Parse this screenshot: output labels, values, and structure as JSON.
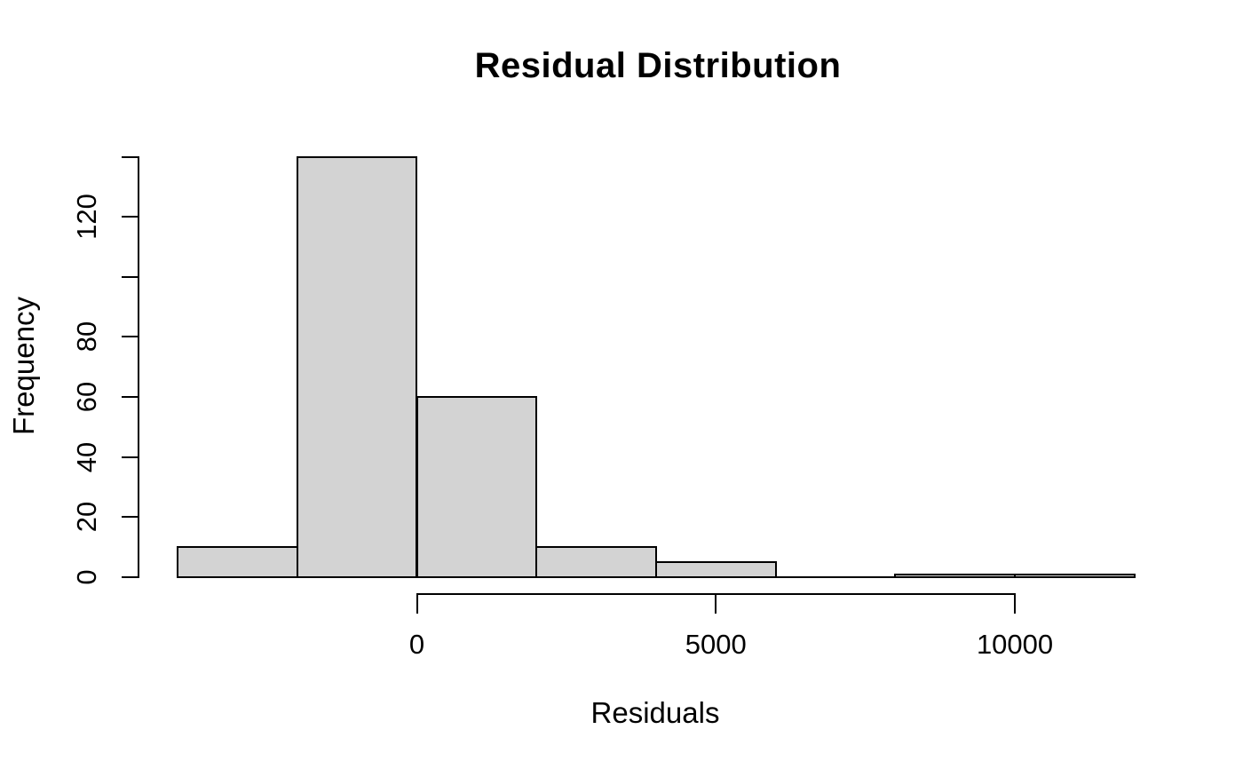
{
  "chart_data": {
    "type": "bar",
    "subtype": "histogram",
    "title": "Residual Distribution",
    "xlabel": "Residuals",
    "ylabel": "Frequency",
    "breaks": [
      -4000,
      -2000,
      0,
      2000,
      4000,
      6000,
      8000,
      10000,
      12000
    ],
    "counts": [
      10,
      140,
      60,
      10,
      5,
      0,
      1,
      1
    ],
    "xlim": [
      -4000,
      12000
    ],
    "ylim": [
      0,
      140
    ],
    "x_ticks": [
      {
        "value": 0,
        "label": "0"
      },
      {
        "value": 5000,
        "label": "5000"
      },
      {
        "value": 10000,
        "label": "10000"
      }
    ],
    "y_ticks": [
      {
        "value": 0,
        "label": "0"
      },
      {
        "value": 20,
        "label": "20"
      },
      {
        "value": 40,
        "label": "40"
      },
      {
        "value": 60,
        "label": "60"
      },
      {
        "value": 80,
        "label": "80"
      },
      {
        "value": 100,
        "label": ""
      },
      {
        "value": 120,
        "label": "120"
      },
      {
        "value": 140,
        "label": ""
      }
    ],
    "grid": false,
    "legend": "none",
    "colors": {
      "bar_fill": "#d3d3d3",
      "bar_border": "#000000",
      "axis": "#000000",
      "text": "#000000",
      "background": "#ffffff"
    }
  }
}
